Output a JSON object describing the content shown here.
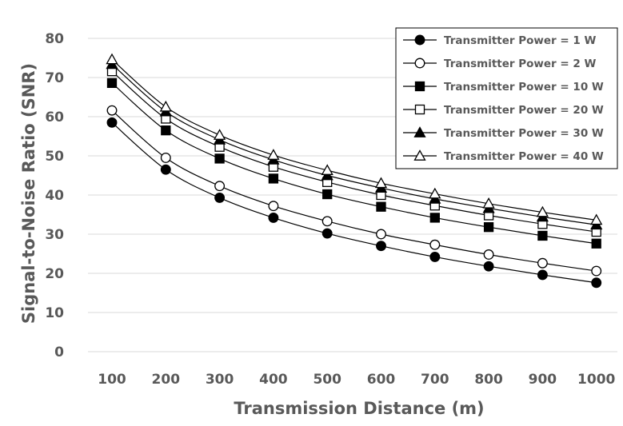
{
  "chart_data": {
    "type": "line",
    "title": "",
    "xlabel": "Transmission Distance (m)",
    "ylabel": "Signal-to-Noise Ratio (SNR)",
    "x": [
      100,
      200,
      300,
      400,
      500,
      600,
      700,
      800,
      900,
      1000
    ],
    "x_tick_labels": [
      "100",
      "200",
      "300",
      "400",
      "500",
      "600",
      "700",
      "800",
      "900",
      "1000"
    ],
    "ylim": [
      0,
      80
    ],
    "y_ticks": [
      0,
      10,
      20,
      30,
      40,
      50,
      60,
      70,
      80
    ],
    "y_tick_labels": [
      "0",
      "10",
      "20",
      "30",
      "40",
      "50",
      "60",
      "70",
      "80"
    ],
    "grid": "horizontal",
    "legend_position": "top-right",
    "series": [
      {
        "name": "Transmitter Power = 1 W",
        "marker": "circle-filled",
        "values": [
          58.5,
          46.5,
          39.3,
          34.2,
          30.2,
          27.0,
          24.2,
          21.8,
          19.6,
          17.6
        ]
      },
      {
        "name": "Transmitter Power = 2 W",
        "marker": "circle-open",
        "values": [
          61.6,
          49.5,
          42.3,
          37.2,
          33.3,
          30.0,
          27.3,
          24.8,
          22.6,
          20.6
        ]
      },
      {
        "name": "Transmitter Power = 10 W",
        "marker": "square-filled",
        "values": [
          68.6,
          56.5,
          49.3,
          44.2,
          40.2,
          37.0,
          34.2,
          31.8,
          29.6,
          27.6
        ]
      },
      {
        "name": "Transmitter Power = 20 W",
        "marker": "square-open",
        "values": [
          71.6,
          59.5,
          52.3,
          47.2,
          43.3,
          40.0,
          37.3,
          34.8,
          32.6,
          30.6
        ]
      },
      {
        "name": "Transmitter Power = 30 W",
        "marker": "triangle-filled",
        "values": [
          73.4,
          61.3,
          54.1,
          49.0,
          45.0,
          41.8,
          39.0,
          36.6,
          34.4,
          32.4
        ]
      },
      {
        "name": "Transmitter Power = 40 W",
        "marker": "triangle-open",
        "values": [
          74.6,
          62.5,
          55.3,
          50.2,
          46.3,
          43.0,
          40.3,
          37.8,
          35.6,
          33.6
        ]
      }
    ],
    "colors": {
      "line": "#000000",
      "grid": "#d9d9d9",
      "text": "#595959",
      "background": "#ffffff"
    }
  }
}
